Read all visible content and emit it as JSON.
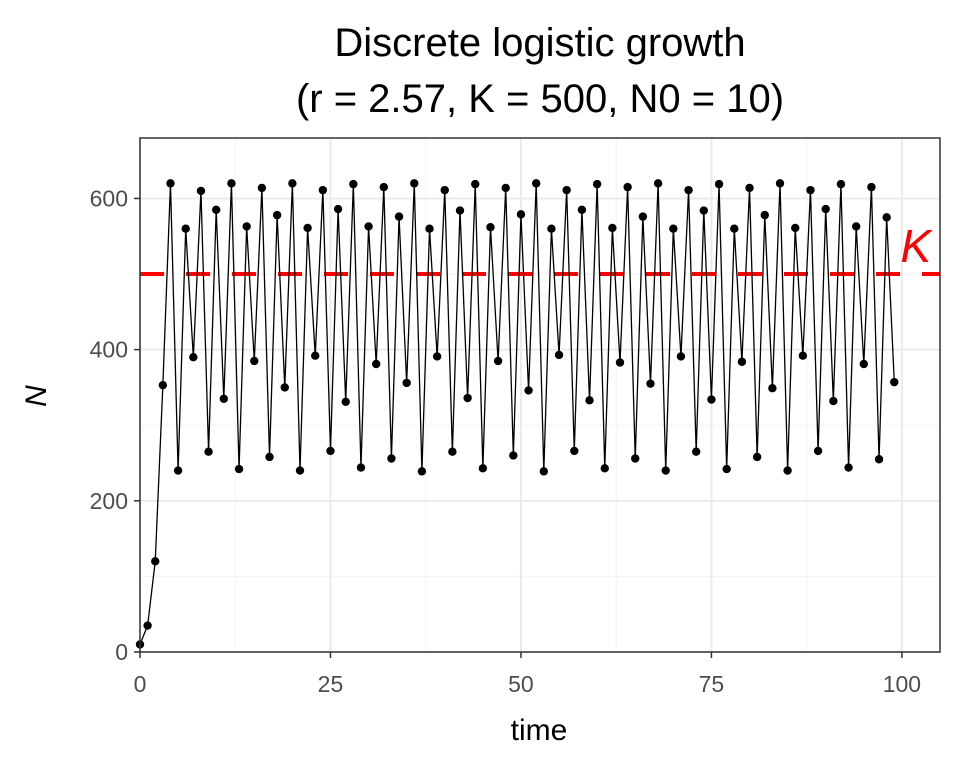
{
  "chart_data": {
    "type": "line",
    "title_line1": "Discrete logistic growth",
    "title_line2": "(r = 2.57, K = 500, N0 = 10)",
    "xlabel": "time",
    "ylabel": "N",
    "xlim": [
      0,
      105
    ],
    "ylim": [
      0,
      680
    ],
    "x_ticks": [
      0,
      25,
      50,
      75,
      100
    ],
    "x_tick_labels": [
      "0",
      "25",
      "50",
      "75",
      "100"
    ],
    "y_ticks": [
      0,
      200,
      400,
      600
    ],
    "y_tick_labels": [
      "0",
      "200",
      "400",
      "600"
    ],
    "grid": true,
    "carrying_capacity": {
      "value": 500,
      "label": "K",
      "color": "#ff0000",
      "style": "dashed"
    },
    "series": [
      {
        "color": "#000000",
        "marker": "point",
        "x": [
          0,
          1,
          2,
          3,
          4,
          5,
          6,
          7,
          8,
          9,
          10,
          11,
          12,
          13,
          14,
          15,
          16,
          17,
          18,
          19,
          20,
          21,
          22,
          23,
          24,
          25,
          26,
          27,
          28,
          29,
          30,
          31,
          32,
          33,
          34,
          35,
          36,
          37,
          38,
          39,
          40,
          41,
          42,
          43,
          44,
          45,
          46,
          47,
          48,
          49,
          50,
          51,
          52,
          53,
          54,
          55,
          56,
          57,
          58,
          59,
          60,
          61,
          62,
          63,
          64,
          65,
          66,
          67,
          68,
          69,
          70,
          71,
          72,
          73,
          74,
          75,
          76,
          77,
          78,
          79,
          80,
          81,
          82,
          83,
          84,
          85,
          86,
          87,
          88,
          89,
          90,
          91,
          92,
          93,
          94,
          95,
          96,
          97,
          98,
          99
        ],
        "values": [
          10,
          35,
          120,
          353,
          620,
          240,
          560,
          390,
          610,
          265,
          585,
          335,
          620,
          242,
          563,
          385,
          614,
          258,
          578,
          350,
          620,
          240,
          561,
          392,
          611,
          266,
          586,
          331,
          619,
          244,
          563,
          381,
          615,
          256,
          576,
          356,
          620,
          239,
          560,
          391,
          611,
          265,
          584,
          336,
          619,
          243,
          562,
          385,
          614,
          260,
          579,
          346,
          620,
          239,
          560,
          393,
          611,
          266,
          585,
          333,
          619,
          243,
          561,
          383,
          615,
          256,
          576,
          355,
          620,
          240,
          560,
          391,
          611,
          265,
          584,
          334,
          619,
          242,
          560,
          384,
          614,
          258,
          578,
          349,
          620,
          240,
          561,
          392,
          611,
          266,
          586,
          332,
          619,
          244,
          563,
          381,
          615,
          255,
          575,
          357
        ]
      }
    ]
  }
}
